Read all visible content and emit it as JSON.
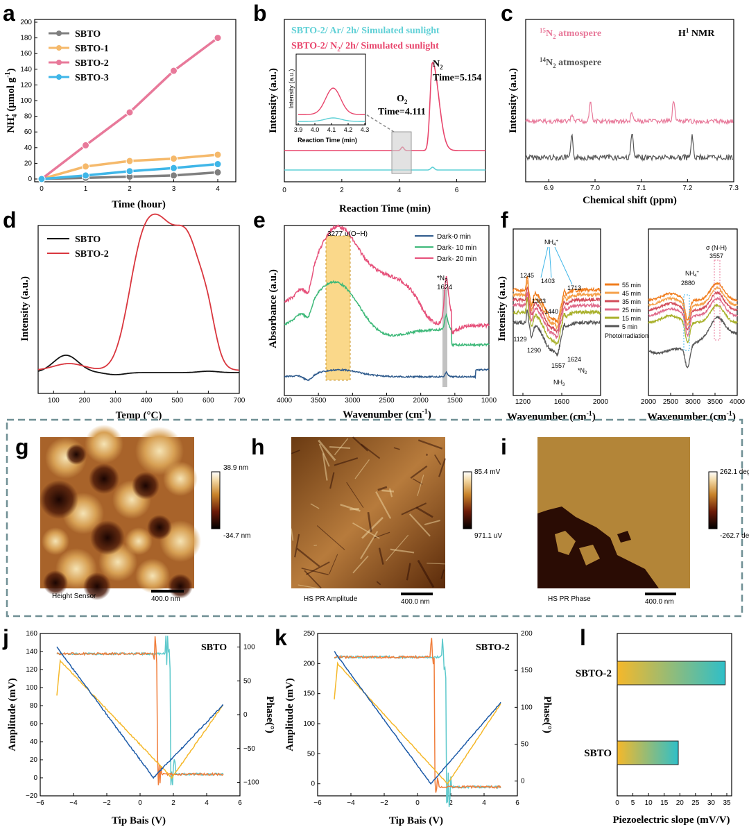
{
  "panel_letters": [
    "a",
    "b",
    "c",
    "d",
    "e",
    "f",
    "g",
    "h",
    "i",
    "j",
    "k",
    "l"
  ],
  "colors": {
    "sbto": "#7f7f7f",
    "sbto1": "#f5b96b",
    "sbto2": "#e8799a",
    "sbto3": "#3fb6e8",
    "ar": "#5fd0d6",
    "n2": "#e8456c",
    "black": "#111111",
    "red": "#d9363e",
    "dark0": "#2e5a8c",
    "dark10": "#3cb878",
    "dark20": "#e6507a",
    "orange": "#f07d3a",
    "cyan": "#5ec9cc",
    "yellow": "#f5b82a",
    "blue": "#1c5aa8"
  },
  "chart_data": [
    {
      "id": "a",
      "type": "line",
      "xlabel": "Time (hour)",
      "ylabel": "NH4+ (μmol g-1)",
      "ylabel_main": "NH",
      "ylabel_sup": "+",
      "ylabel_sub": "4",
      "ylabel_tail": " (μmol g",
      "ylabel_exp": "-1",
      "ylabel_end": ")",
      "xlim": [
        0,
        4
      ],
      "ylim": [
        0,
        200
      ],
      "xticks": [
        "0",
        "1",
        "2",
        "3",
        "4"
      ],
      "yticks": [
        "0",
        "20",
        "40",
        "60",
        "80",
        "100",
        "120",
        "140",
        "160",
        "180",
        "200"
      ],
      "x": [
        0,
        1,
        2,
        3,
        4
      ],
      "series": [
        {
          "name": "SBTO",
          "values": [
            0,
            1.5,
            3,
            4.5,
            8.5
          ]
        },
        {
          "name": "SBTO-1",
          "values": [
            0,
            16,
            23,
            26,
            31
          ]
        },
        {
          "name": "SBTO-2",
          "values": [
            0,
            43,
            85,
            138,
            180
          ]
        },
        {
          "name": "SBTO-3",
          "values": [
            0,
            4.5,
            10,
            14,
            19
          ]
        }
      ]
    },
    {
      "id": "b",
      "type": "line",
      "xlabel": "Reaction Time (min)",
      "ylabel": "Intensity (a.u.)",
      "xlim": [
        0,
        7
      ],
      "xticks": [
        "0",
        "2",
        "4",
        "6"
      ],
      "legend": [
        "SBTO-2/ Ar/ 2h/ Simulated sunlight",
        "SBTO-2/ N2/ 2h/ Simulated sunlight"
      ],
      "legend_a": "SBTO-2/ Ar/ 2h/ Simulated sunlight",
      "legend_b_pre": "SBTO-2/ N",
      "legend_b_sub": "2",
      "legend_b_post": "/ 2h/ Simulated sunlight",
      "annotations": {
        "n2_label": "N",
        "n2_sub": "2",
        "n2_time": "Time=5.154",
        "o2_label": "O",
        "o2_sub": "2",
        "o2_time": "Time=4.111"
      },
      "peaks": [
        {
          "name": "O2",
          "x": 4.111
        },
        {
          "name": "N2",
          "x": 5.154
        }
      ],
      "inset": {
        "xlabel": "Reaction Time (min)",
        "ylabel": "Intensity (a.u.)",
        "xticks": [
          "3.9",
          "4.0",
          "4.1",
          "4.2",
          "4.3"
        ]
      }
    },
    {
      "id": "c",
      "type": "line",
      "xlabel": "Chemical shift (ppm)",
      "ylabel": "Intensity (a.u.)",
      "xlim": [
        6.85,
        7.3
      ],
      "xticks": [
        "6.9",
        "7.0",
        "7.1",
        "7.2",
        "7.3"
      ],
      "title": "H1 NMR",
      "title_main": "H",
      "title_sup": "1",
      "title_tail": " NMR",
      "series": [
        {
          "name": "15N2 atmospere",
          "sup": "15",
          "main": "N",
          "sub": "2",
          "tail": " atmospere",
          "peaks": [
            6.95,
            6.99,
            7.08,
            7.17
          ]
        },
        {
          "name": "14N2 atmospere",
          "sup": "14",
          "main": "N",
          "sub": "2",
          "tail": " atmospere",
          "peaks": [
            6.95,
            7.08,
            7.21
          ]
        }
      ]
    },
    {
      "id": "d",
      "type": "line",
      "xlabel": "Temp (°C)",
      "ylabel": "Intensity (a.u.)",
      "xlim": [
        50,
        700
      ],
      "xticks": [
        "100",
        "200",
        "300",
        "400",
        "500",
        "600",
        "700"
      ],
      "series": [
        {
          "name": "SBTO"
        },
        {
          "name": "SBTO-2"
        }
      ],
      "peaks": {
        "SBTO": [
          140
        ],
        "SBTO-2": [
          380,
          530
        ]
      }
    },
    {
      "id": "e",
      "type": "line",
      "xlabel": "Wavenumber (cm-1)",
      "xlabel_main": "Wavenumber (cm",
      "xlabel_exp": "-1",
      "xlabel_end": ")",
      "ylabel": "Absorbance (a.u.)",
      "xlim": [
        4000,
        1000
      ],
      "xticks": [
        "4000",
        "3500",
        "3000",
        "2500",
        "2000",
        "1500",
        "1000"
      ],
      "series": [
        {
          "name": "Dark-0 min"
        },
        {
          "name": "Dark- 10 min"
        },
        {
          "name": "Dark- 20 min"
        }
      ],
      "annotations": {
        "oh": "3277  υ(O−H)",
        "n2": "*N2",
        "n2_star": "*N",
        "n2_sub": "2",
        "n2_val": "1624"
      }
    },
    {
      "id": "f",
      "type": "line",
      "xlabel": "Wavenumber (cm-1)",
      "xlabel_main": "Wavenumber (cm",
      "xlabel_exp": "-1",
      "xlabel_end": ")",
      "ylabel": "Intensity (a.u.)",
      "left_xlim": [
        1100,
        2000
      ],
      "left_xticks": [
        "1200",
        "1600",
        "2000"
      ],
      "right_xlim": [
        2000,
        4000
      ],
      "right_xticks": [
        "2000",
        "2500",
        "3000",
        "3500",
        "4000"
      ],
      "series": [
        {
          "name": "55 min"
        },
        {
          "name": "45 min"
        },
        {
          "name": "35 min"
        },
        {
          "name": "25 min"
        },
        {
          "name": "15 min"
        },
        {
          "name": "5 min"
        }
      ],
      "legend_note": "Photoirradiation",
      "annotations": {
        "nh4": "NH4+",
        "nh4_main": "NH",
        "nh4_sub": "4",
        "nh4_sup": "+",
        "nh3": "NH3",
        "nh3_main": "NH",
        "nh3_sub": "3",
        "v1245": "1245",
        "v1129": "1129",
        "v1290": "1290",
        "v1363": "1363",
        "v1403": "1403",
        "v1440": "1440",
        "v1557": "1557",
        "v1624": "1624",
        "v1713": "1713",
        "n2": "*N2",
        "n2_star": "*N",
        "n2_sub": "2",
        "v2880": "2880",
        "nh": "σ (N-H)",
        "v3557": "3557"
      }
    },
    {
      "id": "j",
      "type": "line",
      "xlabel": "Tip Bais (V)",
      "ylabel": "Amplitude (mV)",
      "y2label": "Phase(°)",
      "title": "SBTO",
      "xlim": [
        -6,
        6
      ],
      "ylim": [
        -20,
        160
      ],
      "y2lim": [
        -120,
        120
      ],
      "xticks": [
        "−6",
        "−4",
        "−2",
        "0",
        "2",
        "4",
        "6"
      ],
      "yticks": [
        "−20",
        "0",
        "20",
        "40",
        "60",
        "80",
        "100",
        "120",
        "140",
        "160"
      ],
      "y2ticks": [
        "−100",
        "−50",
        "0",
        "50",
        "100"
      ]
    },
    {
      "id": "k",
      "type": "line",
      "xlabel": "Tip Bais (V)",
      "ylabel": "Amplitude (mV)",
      "y2label": "Phase(°)",
      "title": "SBTO-2",
      "xlim": [
        -6,
        6
      ],
      "ylim": [
        -20,
        250
      ],
      "y2lim": [
        -20,
        200
      ],
      "xticks": [
        "−6",
        "−4",
        "−2",
        "0",
        "2",
        "4",
        "6"
      ],
      "yticks": [
        "0",
        "50",
        "100",
        "150",
        "200",
        "250"
      ],
      "y2ticks": [
        "0",
        "50",
        "100",
        "150",
        "200"
      ]
    },
    {
      "id": "l",
      "type": "bar",
      "xlabel": "Piezoelectric slope (mV/V)",
      "categories": [
        "SBTO-2",
        "SBTO"
      ],
      "values": [
        34.5,
        19.5
      ],
      "xlim": [
        0,
        35
      ],
      "xticks": [
        "0",
        "5",
        "10",
        "15",
        "20",
        "25",
        "30",
        "35"
      ]
    }
  ],
  "afm": [
    {
      "id": "g",
      "caption": "Height Sensor",
      "scale": "400.0 nm",
      "cmax": "38.9 nm",
      "cmin": "-34.7 nm"
    },
    {
      "id": "h",
      "caption": "HS PR Amplitude",
      "scale": "400.0 nm",
      "cmax": "85.4 mV",
      "cmin": "971.1 uV"
    },
    {
      "id": "i",
      "caption": "HS PR Phase",
      "scale": "400.0 nm",
      "cmax": "262.1 deg",
      "cmin": "-262.7 deg"
    }
  ]
}
